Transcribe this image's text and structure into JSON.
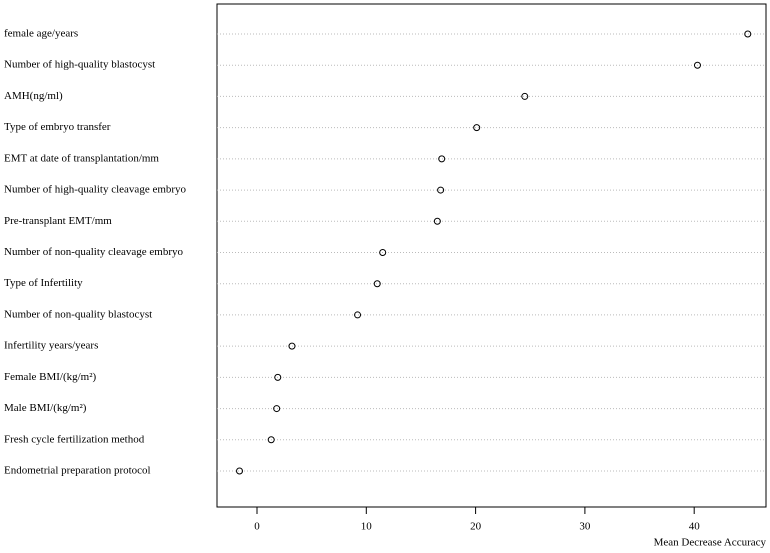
{
  "chart_data": {
    "type": "dot",
    "xlabel": "Mean Decrease Accuracy",
    "categories": [
      "female age/years",
      "Number of high-quality blastocyst",
      "AMH(ng/ml)",
      "Type of embryo transfer",
      "EMT at date of transplantation/mm",
      "Number of high-quality cleavage embryo",
      "Pre-transplant EMT/mm",
      "Number of non-quality cleavage embryo",
      "Type of Infertility",
      "Number of non-quality blastocyst",
      "Infertility years/years",
      "Female BMI/(kg/m²)",
      "Male BMI/(kg/m²)",
      "Fresh cycle fertilization method",
      "Endometrial preparation protocol"
    ],
    "values": [
      44.9,
      40.3,
      24.5,
      20.1,
      16.9,
      16.8,
      16.5,
      11.5,
      11.0,
      9.2,
      3.2,
      1.9,
      1.8,
      1.3,
      -1.6
    ],
    "xlim": [
      -3.66,
      46.57
    ],
    "xticks": [
      0,
      10,
      20,
      30,
      40
    ],
    "grid": true,
    "color": "#000000"
  }
}
